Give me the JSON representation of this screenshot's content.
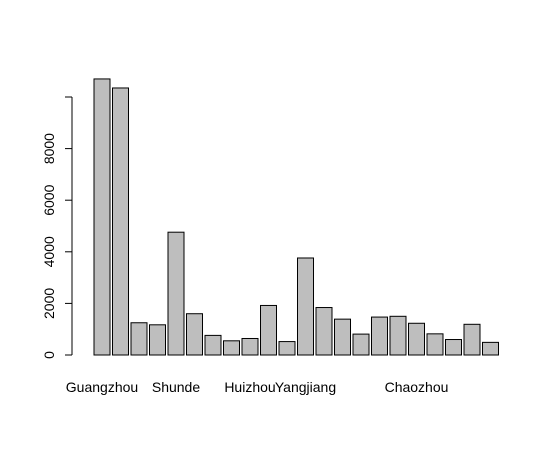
{
  "chart_data": {
    "type": "bar",
    "categories": [
      "Guangzhou",
      "",
      "",
      "",
      "Shunde",
      "",
      "",
      "",
      "Huizhou",
      "",
      "",
      "Yangjiang",
      "",
      "",
      "",
      "",
      "",
      "Chaozhou",
      "",
      "",
      "",
      ""
    ],
    "values": [
      10700,
      10350,
      1250,
      1170,
      4760,
      1600,
      760,
      550,
      640,
      1920,
      520,
      3760,
      1840,
      1390,
      810,
      1470,
      1500,
      1230,
      820,
      600,
      1190,
      490
    ],
    "ylim": [
      0,
      10800
    ],
    "yticks": [
      0,
      2000,
      4000,
      6000,
      8000,
      10000
    ],
    "ytick_labels": [
      "0",
      "2000",
      "4000",
      "6000",
      "8000",
      ""
    ],
    "title": "",
    "xlabel": "",
    "ylabel": "",
    "bar_color": "#bebebe",
    "bar_edge": "#000000",
    "grid": false,
    "legend": "none"
  }
}
